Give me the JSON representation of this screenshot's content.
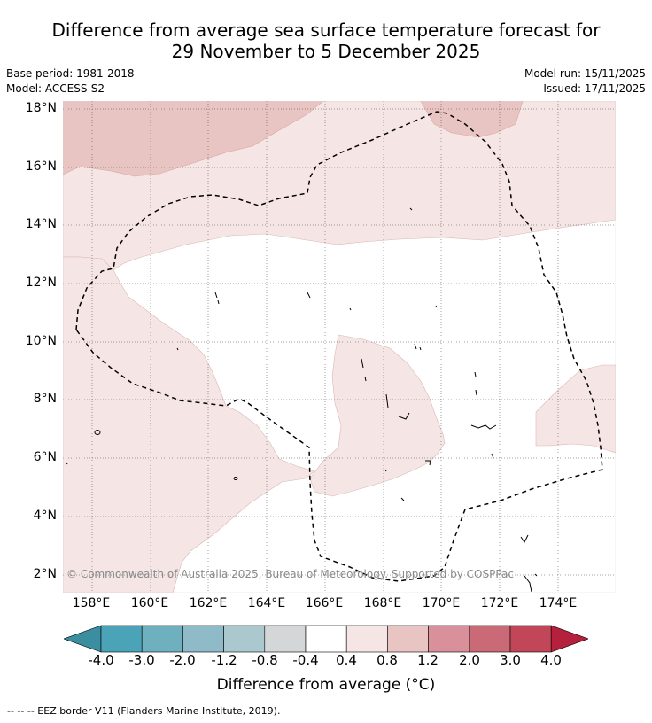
{
  "title_line1": "Difference from average sea surface temperature forecast for",
  "title_line2": "29 November to 5 December 2025",
  "base_period": "Base period: 1981-2018",
  "model": "Model: ACCESS-S2",
  "model_run": "Model run: 15/11/2025",
  "issued": "Issued: 17/11/2025",
  "lat_labels": [
    "18°N",
    "16°N",
    "14°N",
    "12°N",
    "10°N",
    "8°N",
    "6°N",
    "4°N",
    "2°N"
  ],
  "lon_labels": [
    "158°E",
    "160°E",
    "162°E",
    "164°E",
    "166°E",
    "168°E",
    "170°E",
    "172°E",
    "174°E"
  ],
  "copyright": "© Commonwealth of Australia 2025, Bureau of Meteorology. Supported by COSPPac",
  "colorbar": {
    "tick_labels": [
      "-4.0",
      "-3.0",
      "-2.0",
      "-1.2",
      "-0.8",
      "-0.4",
      "0.4",
      "0.8",
      "1.2",
      "2.0",
      "3.0",
      "4.0"
    ],
    "colors": [
      "#3a8ea0",
      "#4aa3b6",
      "#6fb0bf",
      "#8fbac7",
      "#aac8cd",
      "#d3d7d7",
      "#ffffff",
      "#f5e6e5",
      "#e8c5c2",
      "#d9909a",
      "#c96a76",
      "#c04658",
      "#b5213c"
    ],
    "title": "Difference from average (°C)"
  },
  "fills": {
    "light": "#f5e6e5",
    "medium": "#e8c5c2"
  },
  "eez_legend": "--  --  -- EEZ border V11 (Flanders Marine Institute, 2019)."
}
